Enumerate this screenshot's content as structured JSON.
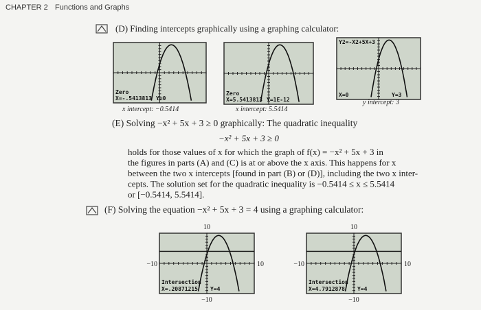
{
  "header": {
    "chapter": "CHAPTER 2",
    "title": "Functions and Graphs"
  },
  "section_d": {
    "heading": "(D) Finding intercepts graphically using a graphing calculator:",
    "screens": [
      {
        "label": "Zero",
        "x": "X=-.5413813",
        "y": "Y=0",
        "caption": "x intercept: −0.5414"
      },
      {
        "label": "Zero",
        "x": "X=5.5413813",
        "y": "Y=1E-12",
        "caption": "x intercept: 5.5414"
      },
      {
        "top": "Y2=-X2+5X+3",
        "x": "X=0",
        "y": "Y=3",
        "caption": "y intercept: 3"
      }
    ]
  },
  "section_e": {
    "heading": "(E) Solving −x² + 5x + 3 ≥ 0 graphically: The quadratic inequality",
    "equation": "−x² + 5x + 3 ≥ 0",
    "lines": [
      "holds for those values of x for which the graph of f(x) = −x² + 5x + 3 in",
      "the figures in parts (A) and (C) is at or above the x axis. This happens for x",
      "between the two x intercepts [found in part (B) or (D)], including the two x inter-",
      "cepts. The solution set for the quadratic inequality is −0.5414 ≤ x ≤ 5.5414",
      "or [−0.5414, 5.5414]."
    ]
  },
  "section_f": {
    "heading": "(F) Solving the equation −x² + 5x + 3 = 4 using a graphing calculator:",
    "screens": [
      {
        "ymax": "10",
        "xmin": "−10",
        "xmax": "10",
        "ymin": "−10",
        "label": "Intersection",
        "x": "X=.20871215",
        "y": "Y=4"
      },
      {
        "ymax": "10",
        "xmin": "−10",
        "xmax": "10",
        "ymin": "−10",
        "label": "Intersection",
        "x": "X=4.7912878",
        "y": "Y=4"
      }
    ]
  }
}
